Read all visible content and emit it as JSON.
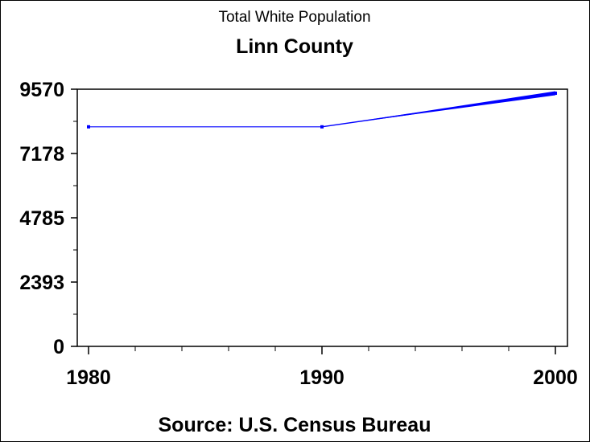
{
  "chart_data": {
    "type": "line",
    "title": "Linn County",
    "subtitle": "Total White Population",
    "footnote": "Source: U.S. Census Bureau",
    "xlabel": "",
    "ylabel": "",
    "x": [
      1980,
      1990,
      2000
    ],
    "series": [
      {
        "values": [
          8170,
          8170,
          9420
        ],
        "color": "#0000ff"
      }
    ],
    "xlim": [
      1980,
      2000
    ],
    "ylim": [
      0,
      9570
    ],
    "x_ticks": [
      "1980",
      "1990",
      "2000"
    ],
    "y_ticks": [
      "0",
      "2393",
      "4785",
      "7178",
      "9570"
    ],
    "grid": false
  }
}
